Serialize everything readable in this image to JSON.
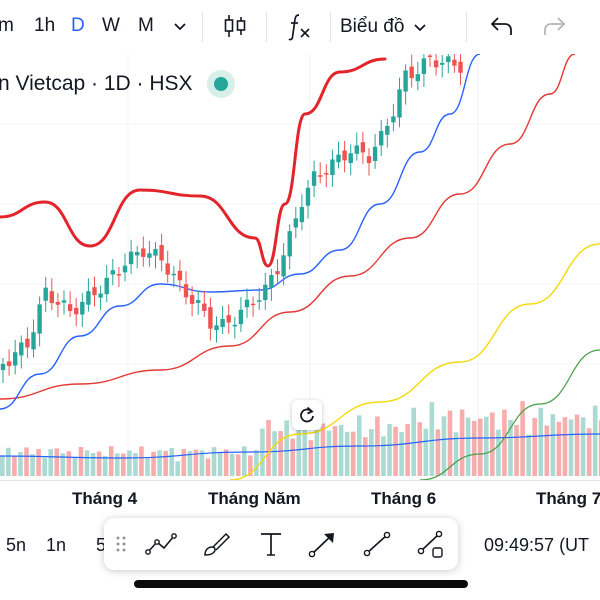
{
  "toolbar": {
    "timeframes": [
      {
        "label": "m",
        "active": false
      },
      {
        "label": "1h",
        "active": false
      },
      {
        "label": "D",
        "active": true
      },
      {
        "label": "W",
        "active": false
      },
      {
        "label": "M",
        "active": false
      }
    ],
    "timeframe_dropdown_icon": "chevron-down-icon",
    "chart_type_icon": "candlestick-icon",
    "indicators_icon": "fx-icon",
    "layout_label": "Biểu đồ",
    "undo_icon": "undo-icon",
    "redo_icon": "redo-icon"
  },
  "legend": {
    "symbol_title": "n Vietcap · 1D · HSX",
    "status_color": "#26a69a"
  },
  "time_axis": {
    "labels": [
      "Tháng 4",
      "Tháng Năm",
      "Tháng 6",
      "Tháng 7"
    ]
  },
  "bottom_bar": {
    "timeframes": [
      "5n",
      "1n",
      "5"
    ],
    "time_readout": "09:49:57 (UT"
  },
  "drawing_tools": [
    {
      "name": "trend-line-tool",
      "icon": "trend-line-icon"
    },
    {
      "name": "brush-tool",
      "icon": "brush-icon"
    },
    {
      "name": "text-tool",
      "icon": "text-icon"
    },
    {
      "name": "arrow-tool",
      "icon": "arrow-icon"
    },
    {
      "name": "line-tool",
      "icon": "line-icon"
    },
    {
      "name": "path-tool",
      "icon": "path-icon"
    }
  ],
  "colors": {
    "up": "#26a69a",
    "down": "#ef5350",
    "accent": "#2962ff",
    "ma_fast": "#2962ff",
    "ma_mid": "#e53935",
    "ma_slow": "#f5d90a",
    "ma_long": "#43a047",
    "curve_annotation": "#e3242b"
  }
}
